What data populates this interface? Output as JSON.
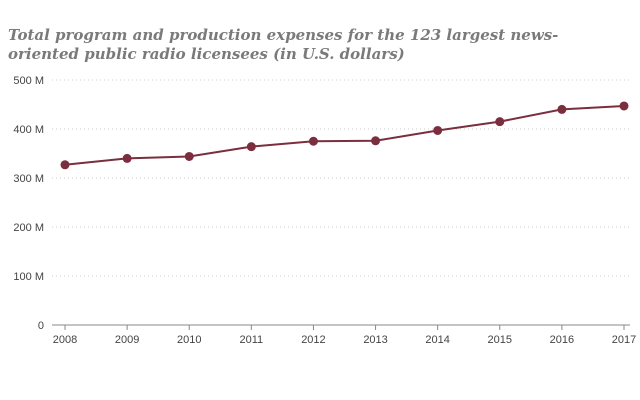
{
  "chart_data": {
    "type": "line",
    "title": "Total program and production expenses for the 123 largest news-oriented public radio licensees (in U.S. dollars)",
    "xlabel": "",
    "ylabel": "",
    "x": [
      "2008",
      "2009",
      "2010",
      "2011",
      "2012",
      "2013",
      "2014",
      "2015",
      "2016",
      "2017"
    ],
    "series": [
      {
        "values": [
          327,
          340,
          344,
          364,
          375,
          376,
          397,
          415,
          440,
          447
        ],
        "unit": "M"
      }
    ],
    "ylim": [
      0,
      500
    ],
    "yticks": [
      0,
      100,
      200,
      300,
      400,
      500
    ],
    "ytick_labels": [
      "0",
      "100 M",
      "200 M",
      "300 M",
      "400 M",
      "500 M"
    ],
    "grid": "horizontal dotted",
    "legend": "none",
    "colors": {
      "line": "#7a2e3e",
      "marker": "#7a2e3e",
      "grid": "#cccccc",
      "axis": "#888888"
    }
  }
}
